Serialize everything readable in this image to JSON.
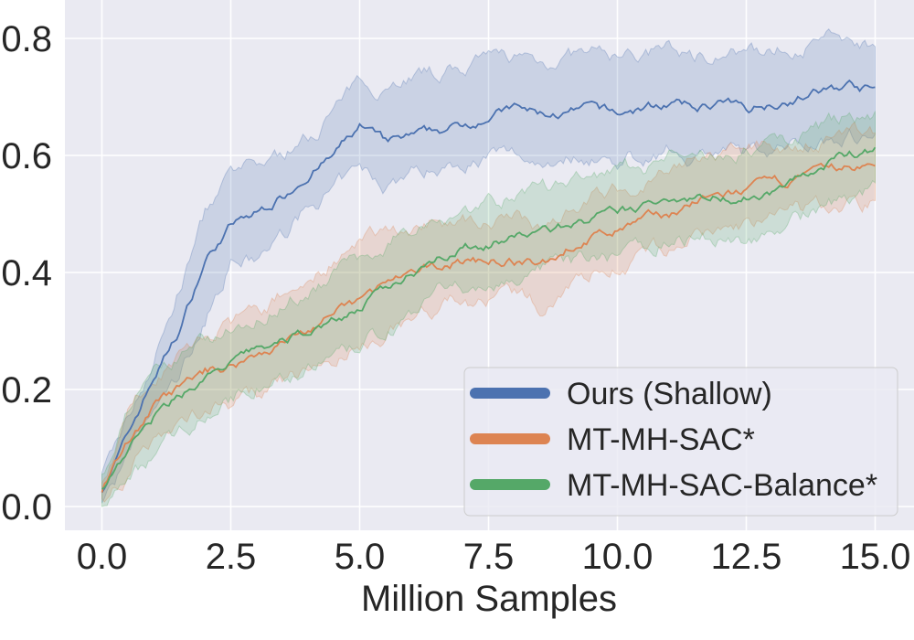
{
  "chart_data": {
    "type": "line",
    "title": "",
    "xlabel": "Million Samples",
    "ylabel": "",
    "xlim": [
      -0.75,
      15.75
    ],
    "ylim": [
      -0.04,
      0.87
    ],
    "xticks": [
      "0.0",
      "2.5",
      "5.0",
      "7.5",
      "10.0",
      "12.5",
      "15.0"
    ],
    "yticks": [
      "0.0",
      "0.2",
      "0.4",
      "0.6",
      "0.8"
    ],
    "grid": true,
    "legend_position": "lower-right",
    "background": "#EAEAF2",
    "x": [
      0,
      0.5,
      1,
      1.5,
      2,
      2.5,
      3,
      3.5,
      4,
      4.5,
      5,
      5.5,
      6,
      6.5,
      7,
      7.5,
      8,
      8.5,
      9,
      9.5,
      10,
      10.5,
      11,
      11.5,
      12,
      12.5,
      13,
      13.5,
      14,
      14.5,
      15
    ],
    "series": [
      {
        "name": "Ours (Shallow)",
        "color": "#4C72B0",
        "values": [
          0.03,
          0.12,
          0.22,
          0.3,
          0.42,
          0.48,
          0.5,
          0.53,
          0.57,
          0.6,
          0.65,
          0.62,
          0.63,
          0.64,
          0.65,
          0.67,
          0.68,
          0.67,
          0.67,
          0.68,
          0.67,
          0.68,
          0.69,
          0.68,
          0.69,
          0.68,
          0.69,
          0.7,
          0.71,
          0.72,
          0.71
        ],
        "upper": [
          0.05,
          0.15,
          0.25,
          0.37,
          0.5,
          0.56,
          0.58,
          0.6,
          0.63,
          0.68,
          0.72,
          0.72,
          0.74,
          0.74,
          0.75,
          0.76,
          0.77,
          0.76,
          0.77,
          0.77,
          0.77,
          0.77,
          0.78,
          0.77,
          0.78,
          0.77,
          0.78,
          0.79,
          0.8,
          0.8,
          0.79
        ],
        "lower": [
          0.01,
          0.08,
          0.16,
          0.22,
          0.32,
          0.42,
          0.42,
          0.46,
          0.51,
          0.54,
          0.57,
          0.55,
          0.57,
          0.58,
          0.59,
          0.6,
          0.6,
          0.59,
          0.6,
          0.6,
          0.59,
          0.6,
          0.61,
          0.6,
          0.61,
          0.6,
          0.61,
          0.62,
          0.63,
          0.64,
          0.63
        ]
      },
      {
        "name": "MT-MH-SAC*",
        "color": "#DD8452",
        "values": [
          0.03,
          0.11,
          0.17,
          0.2,
          0.23,
          0.24,
          0.26,
          0.28,
          0.3,
          0.33,
          0.35,
          0.38,
          0.39,
          0.41,
          0.42,
          0.42,
          0.42,
          0.41,
          0.44,
          0.46,
          0.47,
          0.49,
          0.5,
          0.52,
          0.53,
          0.54,
          0.55,
          0.56,
          0.57,
          0.58,
          0.58
        ],
        "upper": [
          0.05,
          0.16,
          0.22,
          0.26,
          0.29,
          0.31,
          0.33,
          0.36,
          0.39,
          0.42,
          0.44,
          0.48,
          0.47,
          0.49,
          0.49,
          0.49,
          0.49,
          0.48,
          0.51,
          0.53,
          0.54,
          0.56,
          0.57,
          0.59,
          0.6,
          0.61,
          0.62,
          0.62,
          0.63,
          0.64,
          0.64
        ],
        "lower": [
          0.01,
          0.06,
          0.12,
          0.14,
          0.17,
          0.18,
          0.19,
          0.21,
          0.23,
          0.25,
          0.27,
          0.3,
          0.32,
          0.34,
          0.35,
          0.35,
          0.36,
          0.34,
          0.38,
          0.4,
          0.41,
          0.43,
          0.44,
          0.46,
          0.47,
          0.48,
          0.49,
          0.5,
          0.51,
          0.52,
          0.52
        ]
      },
      {
        "name": "MT-MH-SAC-Balance*",
        "color": "#55A868",
        "values": [
          0.03,
          0.1,
          0.15,
          0.19,
          0.22,
          0.24,
          0.27,
          0.28,
          0.3,
          0.32,
          0.34,
          0.37,
          0.4,
          0.43,
          0.44,
          0.45,
          0.46,
          0.47,
          0.48,
          0.49,
          0.5,
          0.51,
          0.53,
          0.53,
          0.53,
          0.53,
          0.54,
          0.56,
          0.58,
          0.6,
          0.61
        ],
        "upper": [
          0.05,
          0.16,
          0.22,
          0.25,
          0.28,
          0.3,
          0.33,
          0.35,
          0.37,
          0.4,
          0.42,
          0.45,
          0.48,
          0.5,
          0.51,
          0.52,
          0.53,
          0.54,
          0.55,
          0.56,
          0.57,
          0.58,
          0.6,
          0.6,
          0.6,
          0.61,
          0.62,
          0.63,
          0.65,
          0.67,
          0.67
        ],
        "lower": [
          0.01,
          0.04,
          0.09,
          0.13,
          0.16,
          0.18,
          0.21,
          0.22,
          0.24,
          0.25,
          0.27,
          0.3,
          0.33,
          0.36,
          0.37,
          0.38,
          0.39,
          0.4,
          0.41,
          0.42,
          0.43,
          0.44,
          0.46,
          0.46,
          0.46,
          0.46,
          0.47,
          0.49,
          0.51,
          0.53,
          0.54
        ]
      }
    ]
  }
}
